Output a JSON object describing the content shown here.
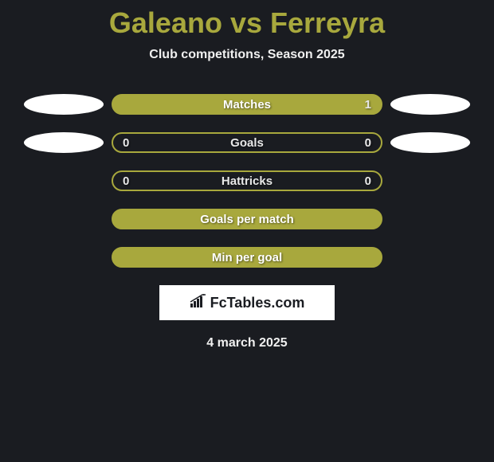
{
  "title": "Galeano vs Ferreyra",
  "subtitle": "Club competitions, Season 2025",
  "colors": {
    "background": "#1a1c21",
    "accent": "#a8a83d",
    "text_light": "#f0f0f0",
    "text_stat": "#e8e8e8",
    "white": "#ffffff"
  },
  "layout": {
    "stat_box_width": 340,
    "stat_box_height": 26,
    "border_radius": 13,
    "border_width": 2,
    "row_gap": 22
  },
  "rows": [
    {
      "label": "Matches",
      "left_value": "",
      "right_value": "1",
      "filled": true,
      "show_left_ellipse": true,
      "show_right_ellipse": true
    },
    {
      "label": "Goals",
      "left_value": "0",
      "right_value": "0",
      "filled": false,
      "show_left_ellipse": true,
      "show_right_ellipse": true
    },
    {
      "label": "Hattricks",
      "left_value": "0",
      "right_value": "0",
      "filled": false,
      "show_left_ellipse": false,
      "show_right_ellipse": false
    },
    {
      "label": "Goals per match",
      "left_value": "",
      "right_value": "",
      "filled": true,
      "show_left_ellipse": false,
      "show_right_ellipse": false
    },
    {
      "label": "Min per goal",
      "left_value": "",
      "right_value": "",
      "filled": true,
      "show_left_ellipse": false,
      "show_right_ellipse": false
    }
  ],
  "logo_text": "FcTables.com",
  "date": "4 march 2025"
}
